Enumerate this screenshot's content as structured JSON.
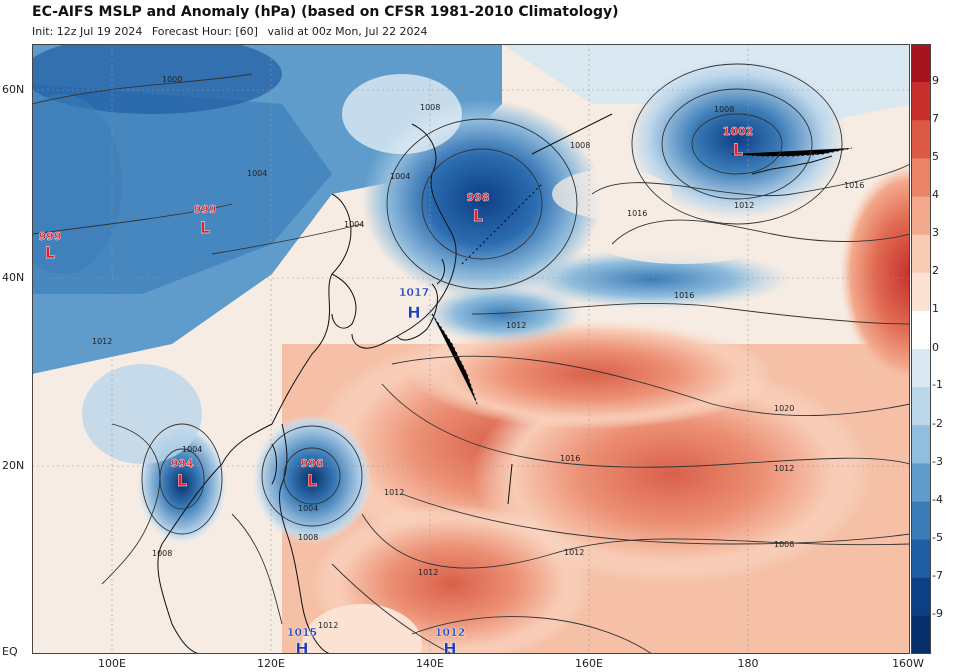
{
  "header": {
    "title": "EC-AIFS MSLP and Anomaly (hPa) (based on CFSR 1981-2010 Climatology)",
    "init": "Init: 12z Jul 19 2024",
    "forecast_hour": "Forecast Hour: [60]",
    "valid": "valid at 00z Mon, Jul 22 2024"
  },
  "axes": {
    "lat_labels": [
      "60N",
      "40N",
      "20N",
      "EQ"
    ],
    "lon_labels": [
      "100E",
      "120E",
      "140E",
      "160E",
      "180",
      "160W"
    ]
  },
  "colorbar": {
    "labels": [
      "9",
      "7",
      "5",
      "4",
      "3",
      "2",
      "1",
      "0",
      "-1",
      "-2",
      "-3",
      "-4",
      "-5",
      "-7",
      "-9"
    ],
    "colors": [
      "#a5141f",
      "#c8302d",
      "#db5a45",
      "#ea8468",
      "#f3a98c",
      "#f8cbb4",
      "#fbe2d3",
      "#ffffff",
      "#dae8f2",
      "#bcd6ea",
      "#92bedd",
      "#5f9ccb",
      "#3a7cb8",
      "#1f5ea4",
      "#0d3f85",
      "#062e6b"
    ]
  },
  "pressure_centers": [
    {
      "type": "L",
      "value": "999",
      "name": "low-west-edge"
    },
    {
      "type": "L",
      "value": "999",
      "name": "low-mongolia"
    },
    {
      "type": "L",
      "value": "998",
      "name": "low-okhotsk"
    },
    {
      "type": "L",
      "value": "1002",
      "name": "low-bering"
    },
    {
      "type": "L",
      "value": "994",
      "name": "low-south-china-sea"
    },
    {
      "type": "L",
      "value": "996",
      "name": "low-philippine-sea"
    },
    {
      "type": "H",
      "value": "1017",
      "name": "high-japan"
    },
    {
      "type": "H",
      "value": "1015",
      "name": "high-equator-west"
    },
    {
      "type": "H",
      "value": "1012",
      "name": "high-equator-east"
    }
  ],
  "isobar_labels": [
    "1000",
    "1008",
    "1004",
    "1004",
    "1004",
    "1008",
    "1008",
    "1012",
    "1016",
    "1016",
    "1016",
    "1020",
    "1012",
    "1016",
    "1012",
    "1012",
    "1008",
    "1012",
    "1004",
    "1008",
    "1012",
    "1012",
    "1004",
    "1008",
    "1012"
  ],
  "colors": {
    "warm_anomaly": "#e07a5f",
    "cold_anomaly": "#2b6cb0",
    "low_marker": "#e0202a",
    "high_marker": "#1a3fb8"
  }
}
